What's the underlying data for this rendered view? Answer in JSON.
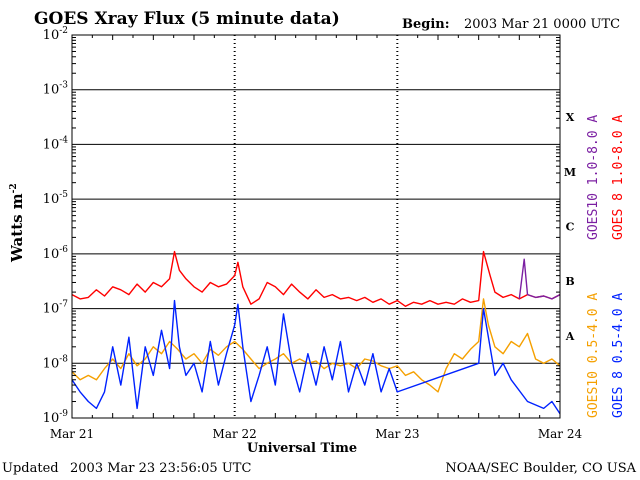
{
  "chart_data": {
    "type": "line",
    "title": "GOES Xray Flux (5 minute data)",
    "begin_label": "Begin:",
    "begin_value": "2003 Mar 21 0000 UTC",
    "ylabel": "Watts m",
    "ylabel_sup": "-2",
    "xlabel": "Universal Time",
    "yscale": "log",
    "ylim": [
      1e-09,
      0.01
    ],
    "xlim_days": [
      0,
      3
    ],
    "y_ticks": [
      {
        "base": "10",
        "exp": "-9",
        "value": 1e-09
      },
      {
        "base": "10",
        "exp": "-8",
        "value": 1e-08
      },
      {
        "base": "10",
        "exp": "-7",
        "value": 1e-07
      },
      {
        "base": "10",
        "exp": "-6",
        "value": 1e-06
      },
      {
        "base": "10",
        "exp": "-5",
        "value": 1e-05
      },
      {
        "base": "10",
        "exp": "-4",
        "value": 0.0001
      },
      {
        "base": "10",
        "exp": "-3",
        "value": 0.001
      },
      {
        "base": "10",
        "exp": "-2",
        "value": 0.01
      }
    ],
    "x_ticks": [
      {
        "label": "Mar 21",
        "day": 0
      },
      {
        "label": "Mar 22",
        "day": 1
      },
      {
        "label": "Mar 23",
        "day": 2
      },
      {
        "label": "Mar 24",
        "day": 3
      }
    ],
    "flare_classes": [
      {
        "label": "A",
        "value": 3.16e-08
      },
      {
        "label": "B",
        "value": 3.16e-07
      },
      {
        "label": "C",
        "value": 3.16e-06
      },
      {
        "label": "M",
        "value": 3.16e-05
      },
      {
        "label": "X",
        "value": 0.000316
      }
    ],
    "legend_right": [
      {
        "text": "GOES10 1.0-8.0 A",
        "color": "#7b1fa2"
      },
      {
        "text": "GOES 8 1.0-8.0 A",
        "color": "#ff0000"
      }
    ],
    "legend_right_low": [
      {
        "text": "GOES10 0.5-4.0 A",
        "color": "#f5a000"
      },
      {
        "text": "GOES 8 0.5-4.0 A",
        "color": "#0022ff"
      }
    ],
    "series": [
      {
        "name": "GOES 8 1.0-8.0 A",
        "color": "#ff0000",
        "points": [
          [
            0,
            1.8e-07
          ],
          [
            0.05,
            1.5e-07
          ],
          [
            0.1,
            1.6e-07
          ],
          [
            0.15,
            2.2e-07
          ],
          [
            0.2,
            1.7e-07
          ],
          [
            0.25,
            2.5e-07
          ],
          [
            0.3,
            2.2e-07
          ],
          [
            0.35,
            1.8e-07
          ],
          [
            0.4,
            2.8e-07
          ],
          [
            0.45,
            2e-07
          ],
          [
            0.5,
            3e-07
          ],
          [
            0.55,
            2.5e-07
          ],
          [
            0.6,
            3.5e-07
          ],
          [
            0.63,
            1.1e-06
          ],
          [
            0.66,
            5e-07
          ],
          [
            0.7,
            3.5e-07
          ],
          [
            0.75,
            2.5e-07
          ],
          [
            0.8,
            2e-07
          ],
          [
            0.85,
            3e-07
          ],
          [
            0.9,
            2.5e-07
          ],
          [
            0.95,
            2.8e-07
          ],
          [
            1.0,
            4e-07
          ],
          [
            1.02,
            7e-07
          ],
          [
            1.05,
            2.5e-07
          ],
          [
            1.1,
            1.2e-07
          ],
          [
            1.15,
            1.5e-07
          ],
          [
            1.2,
            3e-07
          ],
          [
            1.25,
            2.5e-07
          ],
          [
            1.3,
            1.8e-07
          ],
          [
            1.35,
            2.8e-07
          ],
          [
            1.4,
            2e-07
          ],
          [
            1.45,
            1.5e-07
          ],
          [
            1.5,
            2.2e-07
          ],
          [
            1.55,
            1.6e-07
          ],
          [
            1.6,
            1.8e-07
          ],
          [
            1.65,
            1.5e-07
          ],
          [
            1.7,
            1.6e-07
          ],
          [
            1.75,
            1.4e-07
          ],
          [
            1.8,
            1.6e-07
          ],
          [
            1.85,
            1.3e-07
          ],
          [
            1.9,
            1.5e-07
          ],
          [
            1.95,
            1.2e-07
          ],
          [
            2.0,
            1.4e-07
          ],
          [
            2.05,
            1.1e-07
          ],
          [
            2.1,
            1.3e-07
          ],
          [
            2.15,
            1.2e-07
          ],
          [
            2.2,
            1.4e-07
          ],
          [
            2.25,
            1.2e-07
          ],
          [
            2.3,
            1.3e-07
          ],
          [
            2.35,
            1.2e-07
          ],
          [
            2.4,
            1.5e-07
          ],
          [
            2.45,
            1.3e-07
          ],
          [
            2.5,
            1.4e-07
          ],
          [
            2.53,
            1.1e-06
          ],
          [
            2.57,
            4e-07
          ],
          [
            2.6,
            2e-07
          ],
          [
            2.65,
            1.6e-07
          ],
          [
            2.7,
            1.8e-07
          ],
          [
            2.75,
            1.5e-07
          ],
          [
            2.8,
            1.8e-07
          ],
          [
            2.85,
            1.6e-07
          ],
          [
            2.9,
            1.7e-07
          ],
          [
            2.95,
            1.5e-07
          ],
          [
            3.0,
            1.8e-07
          ]
        ]
      },
      {
        "name": "GOES10 1.0-8.0 A",
        "color": "#7b1fa2",
        "points": [
          [
            2.75,
            1.5e-07
          ],
          [
            2.78,
            8e-07
          ],
          [
            2.8,
            1.8e-07
          ],
          [
            2.85,
            1.6e-07
          ],
          [
            2.9,
            1.7e-07
          ],
          [
            2.95,
            1.5e-07
          ],
          [
            3.0,
            1.8e-07
          ]
        ]
      },
      {
        "name": "GOES10 0.5-4.0 A",
        "color": "#f5a000",
        "points": [
          [
            0,
            7e-09
          ],
          [
            0.05,
            5e-09
          ],
          [
            0.1,
            6e-09
          ],
          [
            0.15,
            5e-09
          ],
          [
            0.2,
            8e-09
          ],
          [
            0.25,
            1.2e-08
          ],
          [
            0.3,
            8e-09
          ],
          [
            0.35,
            1.5e-08
          ],
          [
            0.4,
            9e-09
          ],
          [
            0.45,
            1.2e-08
          ],
          [
            0.5,
            2e-08
          ],
          [
            0.55,
            1.5e-08
          ],
          [
            0.6,
            2.5e-08
          ],
          [
            0.65,
            1.8e-08
          ],
          [
            0.7,
            1.2e-08
          ],
          [
            0.75,
            1.5e-08
          ],
          [
            0.8,
            1e-08
          ],
          [
            0.85,
            1.8e-08
          ],
          [
            0.9,
            1.4e-08
          ],
          [
            0.95,
            2e-08
          ],
          [
            1.0,
            2.5e-08
          ],
          [
            1.05,
            1.8e-08
          ],
          [
            1.1,
            1.2e-08
          ],
          [
            1.15,
            8e-09
          ],
          [
            1.2,
            1e-08
          ],
          [
            1.25,
            1.2e-08
          ],
          [
            1.3,
            1.5e-08
          ],
          [
            1.35,
            1e-08
          ],
          [
            1.4,
            1.2e-08
          ],
          [
            1.45,
            1e-08
          ],
          [
            1.5,
            1.1e-08
          ],
          [
            1.55,
            8e-09
          ],
          [
            1.6,
            1e-08
          ],
          [
            1.65,
            9e-09
          ],
          [
            1.7,
            1e-08
          ],
          [
            1.75,
            8e-09
          ],
          [
            1.8,
            1.2e-08
          ],
          [
            1.85,
            1.1e-08
          ],
          [
            1.9,
            9e-09
          ],
          [
            1.95,
            8e-09
          ],
          [
            2.0,
            9e-09
          ],
          [
            2.05,
            6e-09
          ],
          [
            2.1,
            7e-09
          ],
          [
            2.15,
            5e-09
          ],
          [
            2.2,
            4e-09
          ],
          [
            2.25,
            3e-09
          ],
          [
            2.3,
            8e-09
          ],
          [
            2.35,
            1.5e-08
          ],
          [
            2.4,
            1.2e-08
          ],
          [
            2.45,
            1.8e-08
          ],
          [
            2.5,
            2.5e-08
          ],
          [
            2.53,
            1.5e-07
          ],
          [
            2.56,
            5e-08
          ],
          [
            2.6,
            2e-08
          ],
          [
            2.65,
            1.5e-08
          ],
          [
            2.7,
            2.5e-08
          ],
          [
            2.75,
            2e-08
          ],
          [
            2.8,
            3.5e-08
          ],
          [
            2.85,
            1.2e-08
          ],
          [
            2.9,
            1e-08
          ],
          [
            2.95,
            1.2e-08
          ],
          [
            3.0,
            9e-09
          ]
        ]
      },
      {
        "name": "GOES 8 0.5-4.0 A",
        "color": "#0022ff",
        "points": [
          [
            0,
            5e-09
          ],
          [
            0.05,
            3e-09
          ],
          [
            0.1,
            2e-09
          ],
          [
            0.15,
            1.5e-09
          ],
          [
            0.2,
            3e-09
          ],
          [
            0.25,
            2e-08
          ],
          [
            0.3,
            4e-09
          ],
          [
            0.35,
            3e-08
          ],
          [
            0.4,
            1.5e-09
          ],
          [
            0.45,
            2e-08
          ],
          [
            0.5,
            6e-09
          ],
          [
            0.55,
            4e-08
          ],
          [
            0.6,
            8e-09
          ],
          [
            0.63,
            1.4e-07
          ],
          [
            0.66,
            2e-08
          ],
          [
            0.7,
            6e-09
          ],
          [
            0.75,
            1e-08
          ],
          [
            0.8,
            3e-09
          ],
          [
            0.85,
            2.5e-08
          ],
          [
            0.9,
            4e-09
          ],
          [
            0.95,
            1.5e-08
          ],
          [
            1.0,
            5e-08
          ],
          [
            1.02,
            1.2e-07
          ],
          [
            1.05,
            2e-08
          ],
          [
            1.1,
            2e-09
          ],
          [
            1.15,
            6e-09
          ],
          [
            1.2,
            2e-08
          ],
          [
            1.25,
            4e-09
          ],
          [
            1.3,
            8e-08
          ],
          [
            1.35,
            1e-08
          ],
          [
            1.4,
            3e-09
          ],
          [
            1.45,
            1.5e-08
          ],
          [
            1.5,
            4e-09
          ],
          [
            1.55,
            2e-08
          ],
          [
            1.6,
            5e-09
          ],
          [
            1.65,
            2.5e-08
          ],
          [
            1.7,
            3e-09
          ],
          [
            1.75,
            1e-08
          ],
          [
            1.8,
            4e-09
          ],
          [
            1.85,
            1.5e-08
          ],
          [
            1.9,
            3e-09
          ],
          [
            1.95,
            8e-09
          ],
          [
            2.0,
            3e-09
          ],
          [
            2.5,
            1e-08
          ],
          [
            2.53,
            1e-07
          ],
          [
            2.56,
            3e-08
          ],
          [
            2.6,
            6e-09
          ],
          [
            2.65,
            1e-08
          ],
          [
            2.7,
            5e-09
          ],
          [
            2.8,
            2e-09
          ],
          [
            2.9,
            1.5e-09
          ],
          [
            2.95,
            2e-09
          ],
          [
            3.0,
            1.2e-09
          ]
        ]
      }
    ]
  },
  "footer": {
    "updated_label": "Updated",
    "updated_value": "2003 Mar 23 23:56:05 UTC",
    "credit": "NOAA/SEC Boulder, CO USA"
  }
}
